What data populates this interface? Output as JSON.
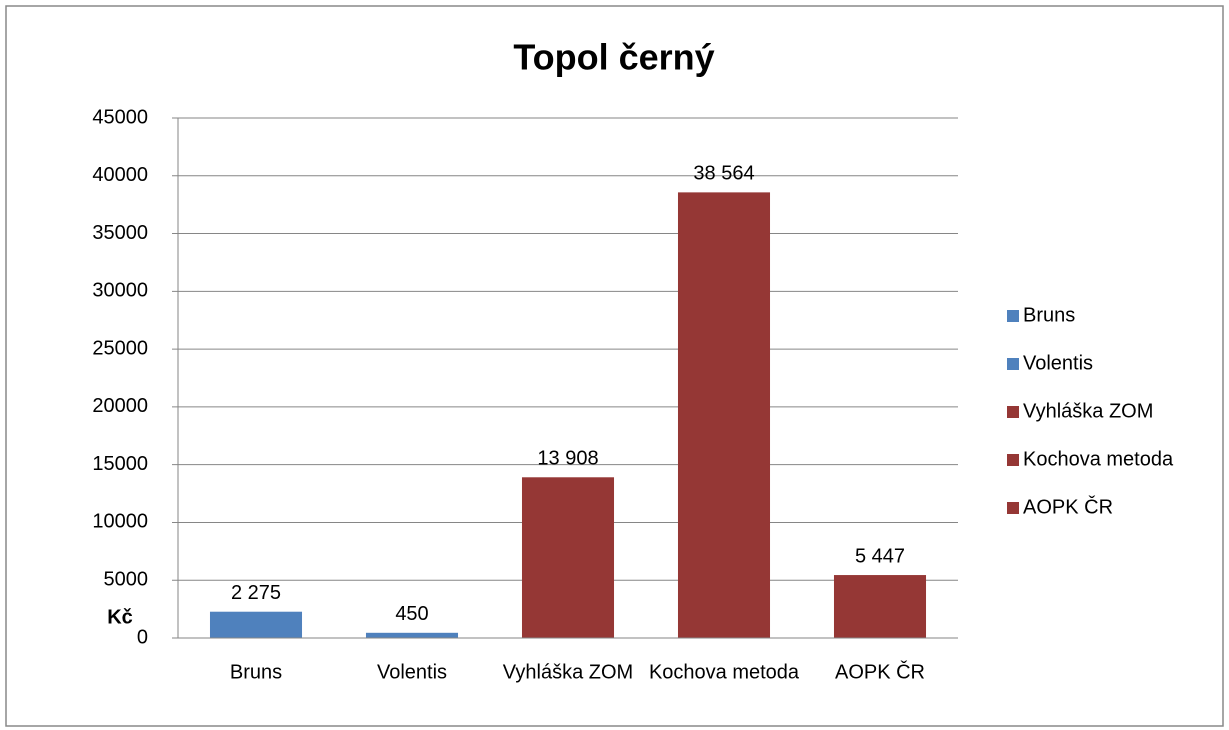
{
  "chart_data": {
    "type": "bar",
    "title": "Topol černý",
    "y_label": "Kč",
    "categories": [
      "Bruns",
      "Volentis",
      "Vyhláška ZOM",
      "Kochova metoda",
      "AOPK ČR"
    ],
    "values": [
      2275,
      450,
      13908,
      38564,
      5447
    ],
    "value_labels": [
      "2 275",
      "450",
      "13 908",
      "38 564",
      "5 447"
    ],
    "colors": [
      "#4f81bd",
      "#4f81bd",
      "#953735",
      "#953735",
      "#953735"
    ],
    "ylim": [
      0,
      45000
    ],
    "yticks": [
      0,
      5000,
      10000,
      15000,
      20000,
      25000,
      30000,
      35000,
      40000,
      45000
    ],
    "grid": true,
    "legend": "right"
  }
}
